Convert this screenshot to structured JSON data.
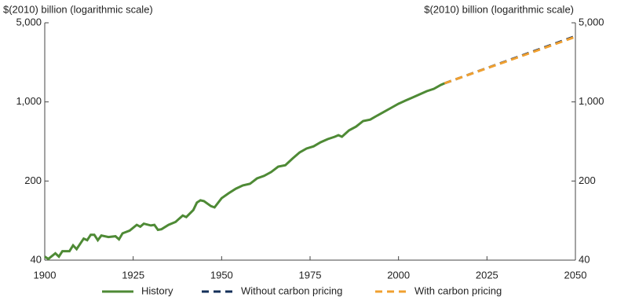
{
  "chart_data": {
    "type": "line",
    "y_axis_label": "$(2010) billion (logarithmic scale)",
    "y2_axis_label": "$(2010) billion (logarithmic scale)",
    "log_scale": true,
    "grid": false,
    "legend_position": "bottom",
    "xlim": [
      1900,
      2050
    ],
    "xticks": [
      1900,
      1925,
      1950,
      1975,
      2000,
      2025,
      2050
    ],
    "ylim": [
      40,
      5000
    ],
    "yticks": [
      40,
      200,
      {
        "value": 1000,
        "label": "1,000"
      },
      {
        "value": 5000,
        "label": "5,000"
      }
    ],
    "y2lim": [
      40,
      5000
    ],
    "y2ticks": [
      40,
      200,
      {
        "value": 1000,
        "label": "1,000"
      },
      {
        "value": 5000,
        "label": "5,000"
      }
    ],
    "series": [
      {
        "name": "History",
        "color": "#4e8a35",
        "dash": false,
        "x": [
          1900,
          1901,
          1903,
          1904,
          1905,
          1907,
          1908,
          1909,
          1911,
          1912,
          1913,
          1914,
          1915,
          1916,
          1918,
          1920,
          1921,
          1922,
          1924,
          1926,
          1927,
          1928,
          1930,
          1931,
          1932,
          1933,
          1935,
          1937,
          1938,
          1939,
          1940,
          1942,
          1943,
          1944,
          1945,
          1947,
          1948,
          1950,
          1952,
          1954,
          1956,
          1958,
          1960,
          1962,
          1964,
          1966,
          1968,
          1970,
          1972,
          1974,
          1976,
          1978,
          1980,
          1982,
          1983,
          1984,
          1986,
          1988,
          1990,
          1992,
          1994,
          1996,
          1998,
          2000,
          2002,
          2004,
          2006,
          2008,
          2010,
          2012,
          2013
        ],
        "values": [
          43,
          41,
          46,
          43,
          48,
          48,
          54,
          50,
          62,
          60,
          67,
          67,
          60,
          66,
          64,
          65,
          61,
          69,
          73,
          82,
          79,
          84,
          81,
          82,
          74,
          75,
          82,
          87,
          93,
          99,
          96,
          111,
          129,
          135,
          133,
          120,
          117,
          141,
          156,
          171,
          183,
          189,
          211,
          222,
          240,
          268,
          276,
          315,
          357,
          387,
          405,
          440,
          469,
          492,
          508,
          492,
          560,
          605,
          678,
          697,
          758,
          820,
          889,
          964,
          1028,
          1094,
          1167,
          1244,
          1306,
          1413,
          1460
        ]
      },
      {
        "name": "Without carbon pricing",
        "color": "#14305a",
        "dash": true,
        "x": [
          2013,
          2020,
          2030,
          2040,
          2050
        ],
        "values": [
          1460,
          1750,
          2266,
          2938,
          3811
        ]
      },
      {
        "name": "With carbon pricing",
        "color": "#f0a030",
        "dash": true,
        "x": [
          2013,
          2020,
          2030,
          2040,
          2050
        ],
        "values": [
          1460,
          1745,
          2250,
          2905,
          3760
        ]
      }
    ]
  }
}
